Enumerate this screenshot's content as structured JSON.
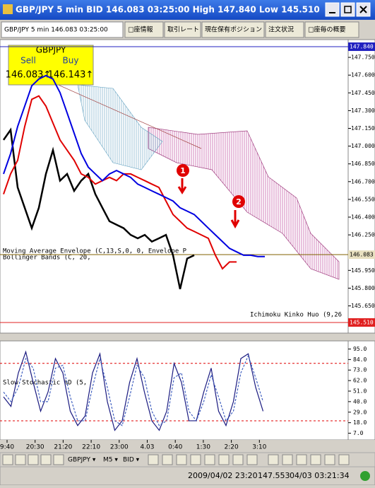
{
  "window": {
    "title": "GBP/JPY 5 min BID 146.083 03:25:00 High 147.840 Low 145.510"
  },
  "tabs": [
    "GBP/JPY 5 min 146.083 03:25:00",
    "□座情報",
    "取引レート",
    "現在保有ポジション",
    "注文状況",
    "□座毎の概要"
  ],
  "quote": {
    "symbol": "GBPJPY",
    "sell_label": "Sell",
    "buy_label": "Buy",
    "sell": "146.083↑",
    "buy": "146.143↑"
  },
  "indicators": [
    "Moving Average Envelope (C,13,S,0, 0, Envelope P",
    "Bollinger Bands (C, 20,",
    "Ichimoku Kinko Huo (9,26",
    "Slow Stochastic %D  (5,"
  ],
  "markers": [
    "1",
    "2"
  ],
  "price_panel": {
    "ylim": [
      145.42,
      147.9
    ],
    "yticks": [
      {
        "value": 147.75,
        "label": "147.750"
      },
      {
        "value": 147.6,
        "label": "147.600"
      },
      {
        "value": 147.45,
        "label": "147.450"
      },
      {
        "value": 147.3,
        "label": "147.300"
      },
      {
        "value": 147.15,
        "label": "147.150"
      },
      {
        "value": 147.0,
        "label": "147.000"
      },
      {
        "value": 146.85,
        "label": "146.850"
      },
      {
        "value": 146.7,
        "label": "146.700"
      },
      {
        "value": 146.55,
        "label": "146.550"
      },
      {
        "value": 146.4,
        "label": "146.400"
      },
      {
        "value": 146.25,
        "label": "146.250"
      },
      {
        "value": 145.95,
        "label": "145.950"
      },
      {
        "value": 145.8,
        "label": "145.800"
      },
      {
        "value": 145.65,
        "label": "145.650"
      }
    ],
    "high": {
      "value": 147.84,
      "label": "147.840"
    },
    "bid": {
      "value": 146.083,
      "label": "146.083"
    },
    "low": {
      "value": 145.51,
      "label": "145.510"
    },
    "series": [
      {
        "color": "#000000",
        "values": [
          147.052,
          147.137,
          146.651,
          146.479,
          146.307,
          146.479,
          146.765,
          146.966,
          146.708,
          146.765,
          146.622,
          146.708,
          146.765,
          146.594,
          146.479,
          146.365,
          146.336,
          146.307,
          146.25,
          146.221,
          146.25,
          146.193,
          146.221,
          146.25,
          146.078,
          145.792,
          146.05,
          146.078
        ]
      },
      {
        "color": "#e00000",
        "values": [
          146.594,
          146.765,
          146.88,
          147.166,
          147.395,
          147.424,
          147.338,
          147.195,
          147.052,
          146.966,
          146.88,
          146.765,
          146.736,
          146.679,
          146.708,
          146.736,
          146.708,
          146.765,
          146.765,
          146.736,
          146.708,
          146.679,
          146.651,
          146.536,
          146.422,
          146.365,
          146.307,
          146.279,
          146.25,
          146.221,
          146.078,
          145.964,
          146.021,
          146.021
        ]
      },
      {
        "color": "#0000e0",
        "values": [
          146.765,
          146.937,
          147.166,
          147.338,
          147.51,
          147.567,
          147.596,
          147.567,
          147.452,
          147.281,
          147.109,
          146.937,
          146.822,
          146.765,
          146.708,
          146.765,
          146.794,
          146.765,
          146.736,
          146.679,
          146.651,
          146.622,
          146.594,
          146.565,
          146.536,
          146.479,
          146.451,
          146.422,
          146.365,
          146.307,
          146.25,
          146.193,
          146.136,
          146.107,
          146.078,
          146.078,
          146.067,
          146.067
        ]
      }
    ]
  },
  "stoch_panel": {
    "ylim": [
      0,
      102
    ],
    "yticks": [
      {
        "value": 95,
        "label": "95.0"
      },
      {
        "value": 84,
        "label": "84.0"
      },
      {
        "value": 73,
        "label": "73.0"
      },
      {
        "value": 62,
        "label": "62.0"
      },
      {
        "value": 51,
        "label": "51.0"
      },
      {
        "value": 40,
        "label": "40.0"
      },
      {
        "value": 29,
        "label": "29.0"
      },
      {
        "value": 18,
        "label": "18.0"
      },
      {
        "value": 7,
        "label": "7.0"
      }
    ],
    "levels": [
      80,
      20
    ],
    "series": [
      {
        "color": "#1a1a80",
        "values": [
          45,
          35,
          70,
          92,
          60,
          30,
          50,
          85,
          70,
          30,
          15,
          25,
          70,
          90,
          40,
          10,
          20,
          60,
          85,
          50,
          20,
          10,
          30,
          80,
          60,
          20,
          20,
          50,
          75,
          30,
          15,
          40,
          85,
          90,
          55,
          30
        ]
      },
      {
        "color": "#4060c0",
        "values": [
          50,
          40,
          55,
          85,
          75,
          40,
          40,
          75,
          78,
          45,
          20,
          20,
          55,
          85,
          55,
          20,
          15,
          45,
          78,
          65,
          30,
          15,
          20,
          65,
          70,
          30,
          20,
          40,
          68,
          45,
          20,
          30,
          70,
          88,
          65,
          40
        ]
      }
    ]
  },
  "time_axis": [
    "9:40",
    "20:30",
    "21:20",
    "22:10",
    "23:00",
    "4.03",
    "0:40",
    "1:30",
    "2:20",
    "3:10"
  ],
  "toolbar": [
    "GBPJPY ▾",
    "M5 ▾",
    "BID ▾"
  ],
  "status": {
    "date": "2009/04/02 23:20",
    "price": "147.553",
    "clock": "04/03 03:21:34"
  }
}
